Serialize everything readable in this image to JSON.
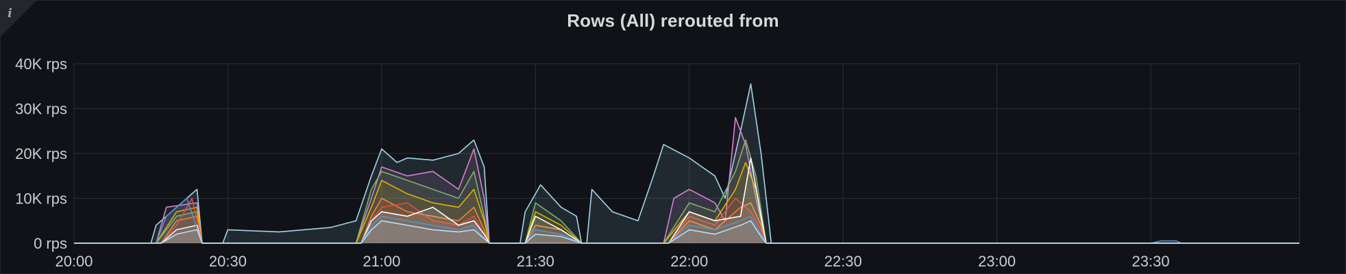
{
  "panel": {
    "title": "Rows (All) rerouted from",
    "info_icon": "info-icon"
  },
  "chart_data": {
    "type": "area",
    "title": "Rows (All) rerouted from",
    "xlabel": "",
    "ylabel": "",
    "x_ticks": [
      "20:00",
      "20:30",
      "21:00",
      "21:30",
      "22:00",
      "22:30",
      "23:00",
      "23:30"
    ],
    "y_ticks": [
      "0 rps",
      "10K rps",
      "20K rps",
      "30K rps",
      "40K rps"
    ],
    "xlim": [
      "20:00",
      "23:59"
    ],
    "ylim": [
      0,
      40000
    ],
    "unit": "rps",
    "grid": true,
    "legend": "none",
    "series": [
      {
        "color": "#9fd7e8",
        "points": [
          [
            "20:00",
            0
          ],
          [
            "20:15",
            0
          ],
          [
            "20:16",
            4000
          ],
          [
            "20:24",
            12000
          ],
          [
            "20:25",
            0
          ],
          [
            "20:29",
            0
          ],
          [
            "20:30",
            3000
          ],
          [
            "20:40",
            2500
          ],
          [
            "20:50",
            3500
          ],
          [
            "20:55",
            5000
          ],
          [
            "20:58",
            15000
          ],
          [
            "21:00",
            21000
          ],
          [
            "21:03",
            18000
          ],
          [
            "21:05",
            19000
          ],
          [
            "21:10",
            18500
          ],
          [
            "21:15",
            20000
          ],
          [
            "21:18",
            23000
          ],
          [
            "21:20",
            17000
          ],
          [
            "21:21",
            0
          ],
          [
            "21:27",
            0
          ],
          [
            "21:28",
            7000
          ],
          [
            "21:31",
            13000
          ],
          [
            "21:35",
            8000
          ],
          [
            "21:38",
            6000
          ],
          [
            "21:39",
            0
          ],
          [
            "21:40",
            0
          ],
          [
            "21:41",
            12000
          ],
          [
            "21:45",
            7000
          ],
          [
            "21:50",
            5000
          ],
          [
            "21:53",
            15000
          ],
          [
            "21:55",
            22000
          ],
          [
            "22:00",
            19000
          ],
          [
            "22:05",
            15000
          ],
          [
            "22:07",
            10000
          ],
          [
            "22:10",
            25000
          ],
          [
            "22:12",
            35500
          ],
          [
            "22:14",
            20000
          ],
          [
            "22:16",
            0
          ],
          [
            "23:59",
            0
          ]
        ]
      },
      {
        "color": "#d683ce",
        "points": [
          [
            "20:00",
            0
          ],
          [
            "20:16",
            0
          ],
          [
            "20:18",
            8000
          ],
          [
            "20:24",
            9000
          ],
          [
            "20:25",
            0
          ],
          [
            "20:55",
            0
          ],
          [
            "20:58",
            10000
          ],
          [
            "21:00",
            17000
          ],
          [
            "21:05",
            15000
          ],
          [
            "21:10",
            16000
          ],
          [
            "21:15",
            12000
          ],
          [
            "21:18",
            21000
          ],
          [
            "21:20",
            10000
          ],
          [
            "21:21",
            0
          ],
          [
            "21:55",
            0
          ],
          [
            "21:57",
            10000
          ],
          [
            "22:00",
            12000
          ],
          [
            "22:05",
            9000
          ],
          [
            "22:07",
            5000
          ],
          [
            "22:09",
            28000
          ],
          [
            "22:11",
            22000
          ],
          [
            "22:13",
            10000
          ],
          [
            "22:15",
            0
          ],
          [
            "23:59",
            0
          ]
        ]
      },
      {
        "color": "#7eb26d",
        "points": [
          [
            "20:00",
            0
          ],
          [
            "20:16",
            0
          ],
          [
            "20:20",
            6000
          ],
          [
            "20:24",
            7000
          ],
          [
            "20:25",
            0
          ],
          [
            "20:55",
            0
          ],
          [
            "20:58",
            12000
          ],
          [
            "21:00",
            16000
          ],
          [
            "21:05",
            14000
          ],
          [
            "21:10",
            12000
          ],
          [
            "21:15",
            10000
          ],
          [
            "21:18",
            16000
          ],
          [
            "21:20",
            6000
          ],
          [
            "21:21",
            0
          ],
          [
            "21:28",
            0
          ],
          [
            "21:30",
            9000
          ],
          [
            "21:35",
            5000
          ],
          [
            "21:39",
            0
          ],
          [
            "21:55",
            0
          ],
          [
            "22:00",
            9000
          ],
          [
            "22:05",
            7000
          ],
          [
            "22:09",
            16000
          ],
          [
            "22:11",
            23000
          ],
          [
            "22:13",
            15000
          ],
          [
            "22:15",
            0
          ],
          [
            "23:59",
            0
          ]
        ]
      },
      {
        "color": "#e0b400",
        "points": [
          [
            "20:00",
            0
          ],
          [
            "20:16",
            0
          ],
          [
            "20:20",
            7000
          ],
          [
            "20:24",
            8000
          ],
          [
            "20:25",
            0
          ],
          [
            "20:55",
            0
          ],
          [
            "20:58",
            8000
          ],
          [
            "21:00",
            14000
          ],
          [
            "21:05",
            11000
          ],
          [
            "21:10",
            9000
          ],
          [
            "21:15",
            8000
          ],
          [
            "21:18",
            12000
          ],
          [
            "21:20",
            5000
          ],
          [
            "21:21",
            0
          ],
          [
            "21:28",
            0
          ],
          [
            "21:30",
            7000
          ],
          [
            "21:35",
            4000
          ],
          [
            "21:39",
            0
          ],
          [
            "21:55",
            0
          ],
          [
            "22:00",
            7000
          ],
          [
            "22:05",
            5000
          ],
          [
            "22:09",
            12000
          ],
          [
            "22:11",
            18000
          ],
          [
            "22:13",
            12000
          ],
          [
            "22:15",
            0
          ],
          [
            "23:59",
            0
          ]
        ]
      },
      {
        "color": "#ef843c",
        "points": [
          [
            "20:00",
            0
          ],
          [
            "20:17",
            0
          ],
          [
            "20:20",
            5000
          ],
          [
            "20:24",
            6000
          ],
          [
            "20:25",
            0
          ],
          [
            "20:56",
            0
          ],
          [
            "20:58",
            6000
          ],
          [
            "21:00",
            10000
          ],
          [
            "21:05",
            7000
          ],
          [
            "21:10",
            6000
          ],
          [
            "21:15",
            5000
          ],
          [
            "21:18",
            8000
          ],
          [
            "21:20",
            3000
          ],
          [
            "21:21",
            0
          ],
          [
            "21:28",
            0
          ],
          [
            "21:30",
            4000
          ],
          [
            "21:35",
            3000
          ],
          [
            "21:39",
            0
          ],
          [
            "21:56",
            0
          ],
          [
            "22:00",
            5000
          ],
          [
            "22:05",
            3000
          ],
          [
            "22:10",
            8000
          ],
          [
            "22:12",
            9000
          ],
          [
            "22:14",
            4000
          ],
          [
            "22:15",
            0
          ],
          [
            "23:59",
            0
          ]
        ]
      },
      {
        "color": "#e24d42",
        "points": [
          [
            "20:00",
            0
          ],
          [
            "20:17",
            0
          ],
          [
            "20:20",
            4000
          ],
          [
            "20:23",
            10000
          ],
          [
            "20:25",
            0
          ],
          [
            "20:56",
            0
          ],
          [
            "20:58",
            5000
          ],
          [
            "21:00",
            8000
          ],
          [
            "21:05",
            9000
          ],
          [
            "21:10",
            5000
          ],
          [
            "21:15",
            4000
          ],
          [
            "21:18",
            6000
          ],
          [
            "21:20",
            2000
          ],
          [
            "21:21",
            0
          ],
          [
            "21:28",
            0
          ],
          [
            "21:30",
            3000
          ],
          [
            "21:35",
            2000
          ],
          [
            "21:39",
            0
          ],
          [
            "21:56",
            0
          ],
          [
            "22:00",
            6000
          ],
          [
            "22:05",
            4000
          ],
          [
            "22:09",
            10000
          ],
          [
            "22:12",
            7000
          ],
          [
            "22:14",
            3000
          ],
          [
            "22:15",
            0
          ],
          [
            "23:59",
            0
          ]
        ]
      },
      {
        "color": "#ffffff",
        "points": [
          [
            "20:00",
            0
          ],
          [
            "20:17",
            0
          ],
          [
            "20:20",
            3000
          ],
          [
            "20:24",
            4000
          ],
          [
            "20:25",
            0
          ],
          [
            "20:56",
            0
          ],
          [
            "20:58",
            5000
          ],
          [
            "21:00",
            7000
          ],
          [
            "21:05",
            6000
          ],
          [
            "21:10",
            8000
          ],
          [
            "21:15",
            4000
          ],
          [
            "21:18",
            5000
          ],
          [
            "21:20",
            2000
          ],
          [
            "21:21",
            0
          ],
          [
            "21:28",
            0
          ],
          [
            "21:30",
            6000
          ],
          [
            "21:35",
            3000
          ],
          [
            "21:39",
            0
          ],
          [
            "21:56",
            0
          ],
          [
            "22:00",
            7000
          ],
          [
            "22:05",
            5000
          ],
          [
            "22:10",
            6000
          ],
          [
            "22:12",
            19000
          ],
          [
            "22:14",
            6000
          ],
          [
            "22:15",
            0
          ],
          [
            "23:59",
            0
          ]
        ]
      },
      {
        "color": "#5195ce",
        "points": [
          [
            "20:00",
            0
          ],
          [
            "20:16",
            0
          ],
          [
            "20:18",
            6000
          ],
          [
            "20:22",
            10000
          ],
          [
            "20:25",
            0
          ],
          [
            "20:56",
            0
          ],
          [
            "20:58",
            4000
          ],
          [
            "21:00",
            6000
          ],
          [
            "21:05",
            5000
          ],
          [
            "21:10",
            4000
          ],
          [
            "21:15",
            3000
          ],
          [
            "21:18",
            4000
          ],
          [
            "21:20",
            1000
          ],
          [
            "21:21",
            0
          ],
          [
            "21:28",
            0
          ],
          [
            "21:30",
            3000
          ],
          [
            "21:35",
            2000
          ],
          [
            "21:39",
            0
          ],
          [
            "21:56",
            0
          ],
          [
            "22:00",
            4000
          ],
          [
            "22:05",
            3000
          ],
          [
            "22:10",
            5000
          ],
          [
            "22:12",
            6000
          ],
          [
            "22:14",
            2000
          ],
          [
            "22:15",
            0
          ],
          [
            "23:30",
            0
          ],
          [
            "23:32",
            500
          ],
          [
            "23:35",
            500
          ],
          [
            "23:36",
            0
          ],
          [
            "23:59",
            0
          ]
        ]
      },
      {
        "color": "#badff4",
        "points": [
          [
            "20:00",
            0
          ],
          [
            "20:17",
            0
          ],
          [
            "20:20",
            2000
          ],
          [
            "20:24",
            3000
          ],
          [
            "20:25",
            0
          ],
          [
            "20:56",
            0
          ],
          [
            "20:58",
            3000
          ],
          [
            "21:00",
            5000
          ],
          [
            "21:05",
            4000
          ],
          [
            "21:10",
            3000
          ],
          [
            "21:15",
            2500
          ],
          [
            "21:18",
            3000
          ],
          [
            "21:20",
            1000
          ],
          [
            "21:21",
            0
          ],
          [
            "21:28",
            0
          ],
          [
            "21:30",
            2000
          ],
          [
            "21:35",
            1500
          ],
          [
            "21:39",
            0
          ],
          [
            "21:56",
            0
          ],
          [
            "22:00",
            3000
          ],
          [
            "22:05",
            2000
          ],
          [
            "22:10",
            4000
          ],
          [
            "22:12",
            5000
          ],
          [
            "22:14",
            1500
          ],
          [
            "22:15",
            0
          ],
          [
            "23:59",
            0
          ]
        ]
      }
    ]
  }
}
